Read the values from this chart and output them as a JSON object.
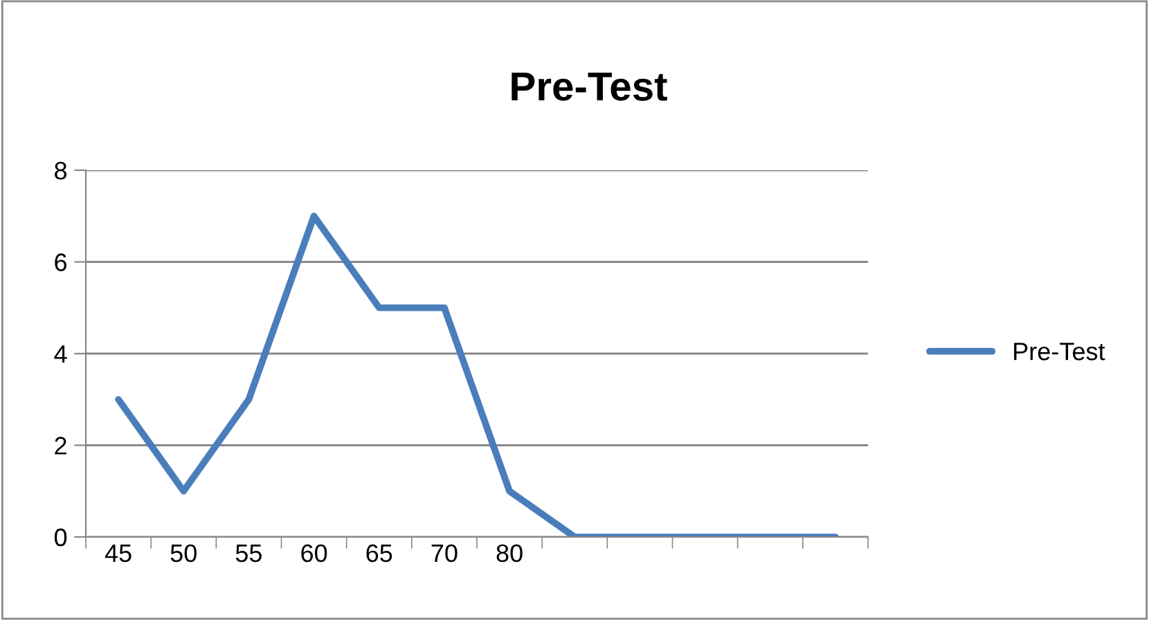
{
  "chart_data": {
    "type": "line",
    "title": "Pre-Test",
    "categories": [
      "45",
      "50",
      "55",
      "60",
      "65",
      "70",
      "80",
      null,
      null,
      null,
      null,
      null
    ],
    "series": [
      {
        "name": "Pre-Test",
        "color": "#4a7ebb",
        "values": [
          3,
          1,
          3,
          7,
          5,
          5,
          1,
          0,
          0,
          0,
          0,
          0
        ]
      }
    ],
    "ylim": [
      0,
      8
    ],
    "yticks": [
      0,
      2,
      4,
      6,
      8
    ],
    "grid": "y",
    "legend": "right",
    "marker": "none",
    "line_style": "solid"
  }
}
